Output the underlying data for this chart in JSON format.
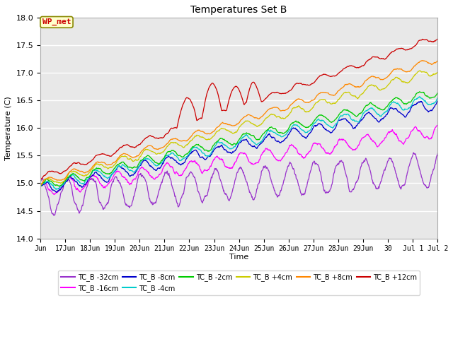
{
  "title": "Temperatures Set B",
  "xlabel": "Time",
  "ylabel": "Temperature (C)",
  "ylim": [
    14.0,
    18.0
  ],
  "yticks": [
    14.0,
    14.5,
    15.0,
    15.5,
    16.0,
    16.5,
    17.0,
    17.5,
    18.0
  ],
  "series": [
    {
      "label": "TC_B -32cm",
      "color": "#9933cc"
    },
    {
      "label": "TC_B -16cm",
      "color": "#ff00ff"
    },
    {
      "label": "TC_B -8cm",
      "color": "#0000cc"
    },
    {
      "label": "TC_B -4cm",
      "color": "#00cccc"
    },
    {
      "label": "TC_B -2cm",
      "color": "#00cc00"
    },
    {
      "label": "TC_B +4cm",
      "color": "#cccc00"
    },
    {
      "label": "TC_B +8cm",
      "color": "#ff8800"
    },
    {
      "label": "TC_B +12cm",
      "color": "#cc0000"
    }
  ],
  "annotation_text": "WP_met",
  "annotation_color": "#cc0000",
  "annotation_bg": "#ffffcc",
  "annotation_edge": "#888800",
  "background_color": "#e8e8e8",
  "n_points": 1200,
  "xtick_labels": [
    "Jun",
    "17Jun",
    "18Jun",
    "19Jun",
    "20Jun",
    "21Jun",
    "22Jun",
    "23Jun",
    "24Jun",
    "25Jun",
    "26Jun",
    "27Jun",
    "28Jun",
    "29Jun",
    "30",
    "Jul 1",
    "Jul 2"
  ],
  "xtick_positions": [
    0,
    1,
    2,
    3,
    4,
    5,
    6,
    7,
    8,
    9,
    10,
    11,
    12,
    13,
    14,
    15,
    16
  ]
}
